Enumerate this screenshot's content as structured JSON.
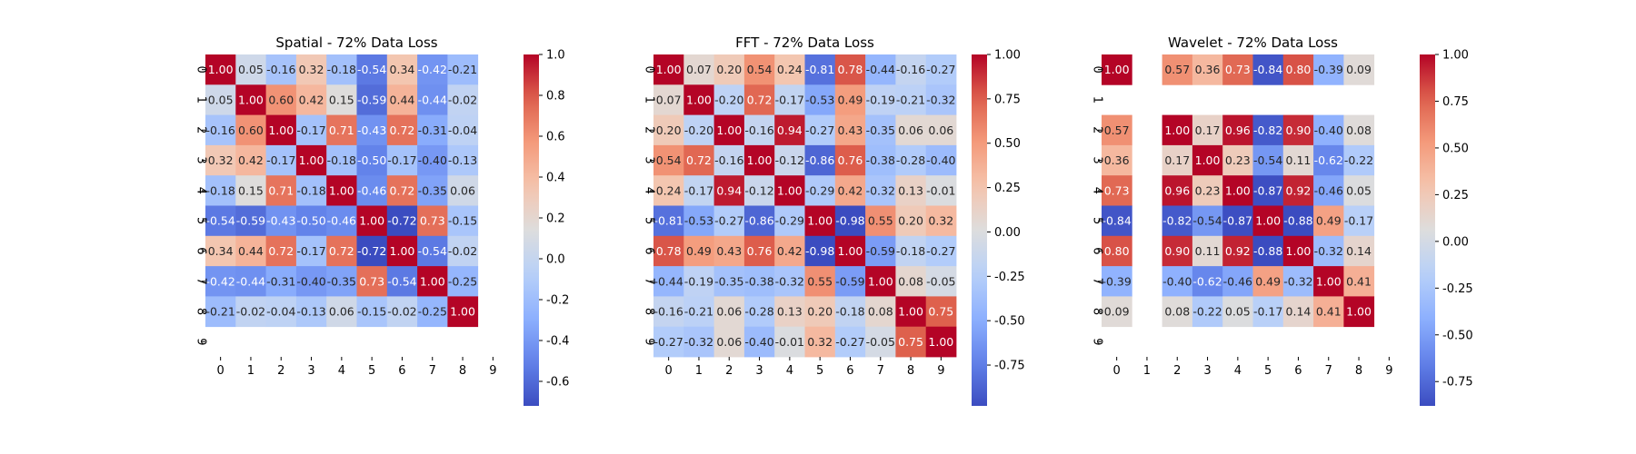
{
  "chart_data": [
    {
      "type": "heatmap",
      "title": "Spatial - 72% Data Loss",
      "x_categories": [
        "0",
        "1",
        "2",
        "3",
        "4",
        "5",
        "6",
        "7",
        "8",
        "9"
      ],
      "y_categories": [
        "0",
        "1",
        "2",
        "3",
        "4",
        "5",
        "6",
        "7",
        "8",
        "9"
      ],
      "colormap": "coolwarm",
      "vmin": -0.72,
      "vmax": 1.0,
      "colorbar_ticks": [
        "-0.6",
        "-0.4",
        "-0.2",
        "0.0",
        "0.2",
        "0.4",
        "0.6",
        "0.8",
        "1.0"
      ],
      "matrix": [
        [
          1.0,
          0.05,
          -0.16,
          0.32,
          -0.18,
          -0.54,
          0.34,
          -0.42,
          -0.21,
          null
        ],
        [
          0.05,
          1.0,
          0.6,
          0.42,
          0.15,
          -0.59,
          0.44,
          -0.44,
          -0.02,
          null
        ],
        [
          -0.16,
          0.6,
          1.0,
          -0.17,
          0.71,
          -0.43,
          0.72,
          -0.31,
          -0.04,
          null
        ],
        [
          0.32,
          0.42,
          -0.17,
          1.0,
          -0.18,
          -0.5,
          -0.17,
          -0.4,
          -0.13,
          null
        ],
        [
          -0.18,
          0.15,
          0.71,
          -0.18,
          1.0,
          -0.46,
          0.72,
          -0.35,
          0.06,
          null
        ],
        [
          -0.54,
          -0.59,
          -0.43,
          -0.5,
          -0.46,
          1.0,
          -0.72,
          0.73,
          -0.15,
          null
        ],
        [
          0.34,
          0.44,
          0.72,
          -0.17,
          0.72,
          -0.72,
          1.0,
          -0.54,
          -0.02,
          null
        ],
        [
          -0.42,
          -0.44,
          -0.31,
          -0.4,
          -0.35,
          0.73,
          -0.54,
          1.0,
          -0.25,
          null
        ],
        [
          -0.21,
          -0.02,
          -0.04,
          -0.13,
          0.06,
          -0.15,
          -0.02,
          -0.25,
          1.0,
          null
        ],
        [
          null,
          null,
          null,
          null,
          null,
          null,
          null,
          null,
          null,
          null
        ]
      ]
    },
    {
      "type": "heatmap",
      "title": "FFT - 72% Data Loss",
      "x_categories": [
        "0",
        "1",
        "2",
        "3",
        "4",
        "5",
        "6",
        "7",
        "8",
        "9"
      ],
      "y_categories": [
        "0",
        "1",
        "2",
        "3",
        "4",
        "5",
        "6",
        "7",
        "8",
        "9"
      ],
      "colormap": "coolwarm",
      "vmin": -0.98,
      "vmax": 1.0,
      "colorbar_ticks": [
        "-0.75",
        "-0.50",
        "-0.25",
        "0.00",
        "0.25",
        "0.50",
        "0.75",
        "1.00"
      ],
      "matrix": [
        [
          1.0,
          0.07,
          0.2,
          0.54,
          0.24,
          -0.81,
          0.78,
          -0.44,
          -0.16,
          -0.27
        ],
        [
          0.07,
          1.0,
          -0.2,
          0.72,
          -0.17,
          -0.53,
          0.49,
          -0.19,
          -0.21,
          -0.32
        ],
        [
          0.2,
          -0.2,
          1.0,
          -0.16,
          0.94,
          -0.27,
          0.43,
          -0.35,
          0.06,
          0.06
        ],
        [
          0.54,
          0.72,
          -0.16,
          1.0,
          -0.12,
          -0.86,
          0.76,
          -0.38,
          -0.28,
          -0.4
        ],
        [
          0.24,
          -0.17,
          0.94,
          -0.12,
          1.0,
          -0.29,
          0.42,
          -0.32,
          0.13,
          -0.01
        ],
        [
          -0.81,
          -0.53,
          -0.27,
          -0.86,
          -0.29,
          1.0,
          -0.98,
          0.55,
          0.2,
          0.32
        ],
        [
          0.78,
          0.49,
          0.43,
          0.76,
          0.42,
          -0.98,
          1.0,
          -0.59,
          -0.18,
          -0.27
        ],
        [
          -0.44,
          -0.19,
          -0.35,
          -0.38,
          -0.32,
          0.55,
          -0.59,
          1.0,
          0.08,
          -0.05
        ],
        [
          -0.16,
          -0.21,
          0.06,
          -0.28,
          0.13,
          0.2,
          -0.18,
          0.08,
          1.0,
          0.75
        ],
        [
          -0.27,
          -0.32,
          0.06,
          -0.4,
          -0.01,
          0.32,
          -0.27,
          -0.05,
          0.75,
          1.0
        ]
      ]
    },
    {
      "type": "heatmap",
      "title": "Wavelet - 72% Data Loss",
      "x_categories": [
        "0",
        "1",
        "2",
        "3",
        "4",
        "5",
        "6",
        "7",
        "8",
        "9"
      ],
      "y_categories": [
        "0",
        "1",
        "2",
        "3",
        "4",
        "5",
        "6",
        "7",
        "8",
        "9"
      ],
      "colormap": "coolwarm",
      "vmin": -0.88,
      "vmax": 1.0,
      "colorbar_ticks": [
        "-0.75",
        "-0.50",
        "-0.25",
        "0.00",
        "0.25",
        "0.50",
        "0.75",
        "1.00"
      ],
      "matrix": [
        [
          1.0,
          null,
          0.57,
          0.36,
          0.73,
          -0.84,
          0.8,
          -0.39,
          0.09,
          null
        ],
        [
          null,
          null,
          null,
          null,
          null,
          null,
          null,
          null,
          null,
          null
        ],
        [
          0.57,
          null,
          1.0,
          0.17,
          0.96,
          -0.82,
          0.9,
          -0.4,
          0.08,
          null
        ],
        [
          0.36,
          null,
          0.17,
          1.0,
          0.23,
          -0.54,
          0.11,
          -0.62,
          -0.22,
          null
        ],
        [
          0.73,
          null,
          0.96,
          0.23,
          1.0,
          -0.87,
          0.92,
          -0.46,
          0.05,
          null
        ],
        [
          -0.84,
          null,
          -0.82,
          -0.54,
          -0.87,
          1.0,
          -0.88,
          0.49,
          -0.17,
          null
        ],
        [
          0.8,
          null,
          0.9,
          0.11,
          0.92,
          -0.88,
          1.0,
          -0.32,
          0.14,
          null
        ],
        [
          -0.39,
          null,
          -0.4,
          -0.62,
          -0.46,
          0.49,
          -0.32,
          1.0,
          0.41,
          null
        ],
        [
          0.09,
          null,
          0.08,
          -0.22,
          0.05,
          -0.17,
          0.14,
          0.41,
          1.0,
          null
        ],
        [
          null,
          null,
          null,
          null,
          null,
          null,
          null,
          null,
          null,
          null
        ]
      ]
    }
  ]
}
